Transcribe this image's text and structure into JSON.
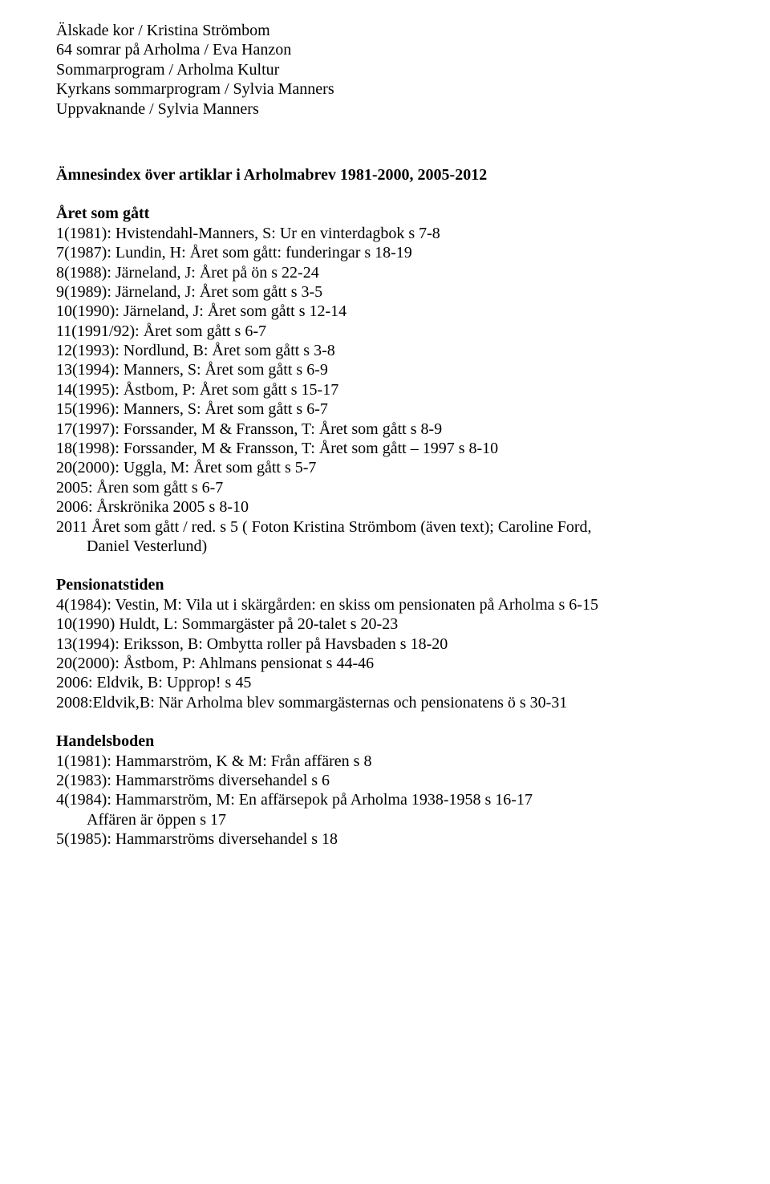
{
  "topLines": [
    "Älskade kor / Kristina Strömbom",
    "64 somrar på Arholma / Eva Hanzon",
    "Sommarprogram / Arholma Kultur",
    "Kyrkans sommarprogram / Sylvia Manners",
    "Uppvaknande / Sylvia Manners"
  ],
  "indexHeading": "Ämnesindex över artiklar i Arholmabrev 1981-2000, 2005-2012",
  "sections": [
    {
      "heading": "Året som gått",
      "lines": [
        "1(1981): Hvistendahl-Manners, S: Ur en vinterdagbok  s 7-8",
        "7(1987):  Lundin, H: Året som gått: funderingar  s 18-19",
        "8(1988): Järneland, J: Året på ön  s 22-24",
        "9(1989): Järneland, J: Året som gått  s 3-5",
        "10(1990): Järneland, J: Året som gått  s 12-14",
        "11(1991/92): Året som gått  s 6-7",
        "12(1993): Nordlund, B: Året som gått  s 3-8",
        "13(1994): Manners, S: Året som gått  s 6-9",
        "14(1995): Åstbom, P: Året som gått  s 15-17",
        "15(1996): Manners, S: Året som gått  s 6-7",
        "17(1997): Forssander, M & Fransson, T: Året som gått  s 8-9",
        "18(1998): Forssander, M & Fransson, T: Året som gått – 1997  s 8-10",
        "20(2000): Uggla, M: Året som gått  s 5-7",
        "2005: Åren som gått  s 6-7",
        "2006: Årskrönika 2005  s 8-10",
        "2011 Året som gått / red.  s 5 ( Foton Kristina Strömbom (även text); Caroline Ford,"
      ],
      "indentLines": [
        "Daniel Vesterlund)"
      ]
    },
    {
      "heading": "Pensionatstiden",
      "lines": [
        "4(1984): Vestin, M: Vila ut i skärgården: en skiss om pensionaten på Arholma  s 6-15",
        "10(1990) Huldt, L: Sommargäster på 20-talet  s 20-23",
        "13(1994): Eriksson, B: Ombytta roller på Havsbaden  s 18-20",
        "20(2000): Åstbom, P: Ahlmans pensionat  s 44-46",
        "2006: Eldvik, B: Upprop!  s 45",
        "2008:Eldvik,B: När Arholma blev sommargästernas och pensionatens ö s 30-31"
      ],
      "indentLines": []
    },
    {
      "heading": "Handelsboden",
      "lines": [
        "1(1981): Hammarström, K & M: Från affären  s 8",
        "2(1983): Hammarströms diversehandel  s 6",
        "4(1984): Hammarström, M: En affärsepok på Arholma 1938-1958  s 16-17"
      ],
      "indentLines": [
        "Affären är öppen  s 17"
      ],
      "tailLines": [
        "5(1985): Hammarströms diversehandel  s 18"
      ]
    }
  ]
}
